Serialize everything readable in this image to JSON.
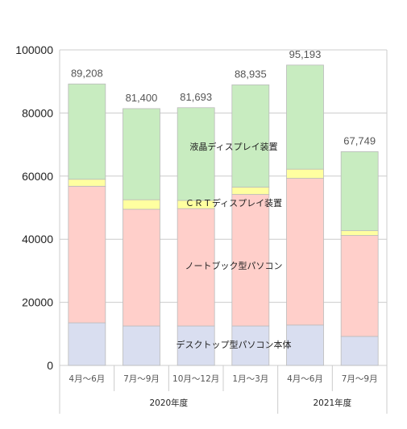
{
  "chart_data": {
    "type": "bar",
    "stacked": true,
    "categories": [
      "4月～6月",
      "7月～9月",
      "10月～12月",
      "1月～3月",
      "4月～6月",
      "7月～9月"
    ],
    "groups": [
      {
        "label": "2020年度",
        "categories": [
          "4月～6月",
          "7月～9月",
          "10月～12月",
          "1月～3月"
        ]
      },
      {
        "label": "2021年度",
        "categories": [
          "4月～6月",
          "7月～9月"
        ]
      }
    ],
    "series": [
      {
        "name": "デスクトップ型パソコン本体",
        "color": "#d9def0",
        "values": [
          13500,
          12500,
          12500,
          12500,
          12800,
          9200
        ]
      },
      {
        "name": "ノートブック型パソコン",
        "color": "#ffcfca",
        "values": [
          43300,
          37000,
          37200,
          41700,
          46500,
          32000
        ]
      },
      {
        "name": "ＣＲＴディスプレイ装置",
        "color": "#ffffa0",
        "values": [
          2200,
          3000,
          2600,
          2300,
          2900,
          1500
        ]
      },
      {
        "name": "液晶ディスプレイ装置",
        "color": "#c8ecc0",
        "values": [
          30208,
          28900,
          29393,
          32435,
          32993,
          25049
        ]
      }
    ],
    "totals": [
      "89,208",
      "81,400",
      "81,693",
      "88,935",
      "95,193",
      "67,749"
    ],
    "highlight": {
      "index": 5,
      "color": "#ff3333"
    },
    "ylim": [
      0,
      100000
    ],
    "yticks": [
      "100000",
      "80000",
      "60000",
      "40000",
      "20000",
      "0"
    ],
    "ytick_values": [
      100000,
      80000,
      60000,
      40000,
      20000,
      0
    ],
    "grid": true,
    "colors": {
      "grid": "#cccccc",
      "bar_border": "#bbbbbb",
      "text": "#555555"
    }
  }
}
